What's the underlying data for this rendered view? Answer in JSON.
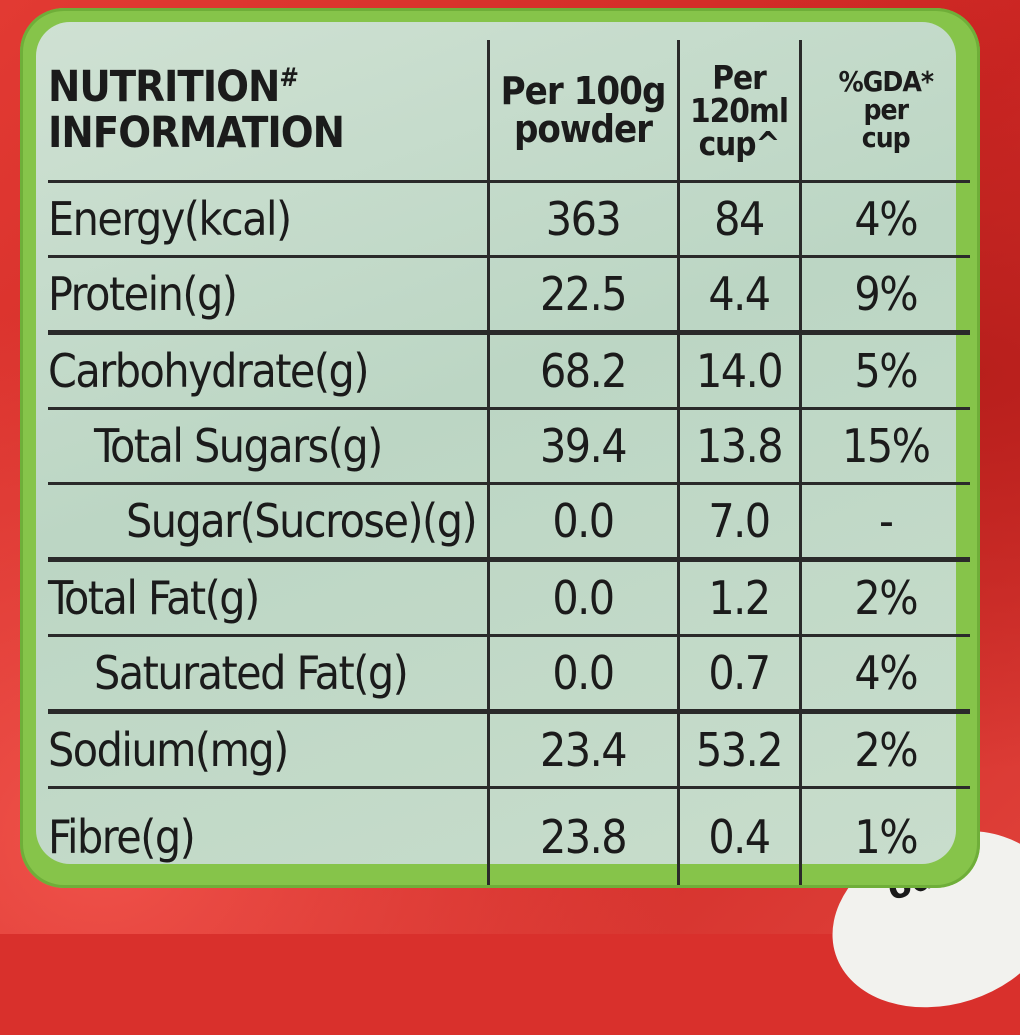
{
  "header": {
    "title_line1": "NUTRITION",
    "title_mark": "#",
    "title_line2": "INFORMATION",
    "col2_line1": "Per 100g",
    "col2_line2": "powder",
    "col3_line1": "Per",
    "col3_line2": "120ml",
    "col3_line3": "cup^",
    "col4_line1": "%GDA*",
    "col4_line2": "per",
    "col4_line3": "cup"
  },
  "rows": [
    {
      "name": "Energy(kcal)",
      "per100g": "363",
      "per_cup": "84",
      "gda": "4%"
    },
    {
      "name": "Protein(g)",
      "per100g": "22.5",
      "per_cup": "4.4",
      "gda": "9%"
    },
    {
      "name": "Carbohydrate(g)",
      "per100g": "68.2",
      "per_cup": "14.0",
      "gda": "5%"
    },
    {
      "name": "Total Sugars(g)",
      "per100g": "39.4",
      "per_cup": "13.8",
      "gda": "15%"
    },
    {
      "name": "Sugar(Sucrose)(g)",
      "per100g": "0.0",
      "per_cup": "7.0",
      "gda": "-"
    },
    {
      "name": "Total Fat(g)",
      "per100g": "0.0",
      "per_cup": "1.2",
      "gda": "2%"
    },
    {
      "name": "Saturated Fat(g)",
      "per100g": "0.0",
      "per_cup": "0.7",
      "gda": "4%"
    },
    {
      "name": "Sodium(mg)",
      "per100g": "23.4",
      "per_cup": "53.2",
      "gda": "2%"
    },
    {
      "name": "Fibre(g)",
      "per100g": "23.8",
      "per_cup": "0.4",
      "gda": "1%"
    }
  ],
  "corner_text": "od"
}
